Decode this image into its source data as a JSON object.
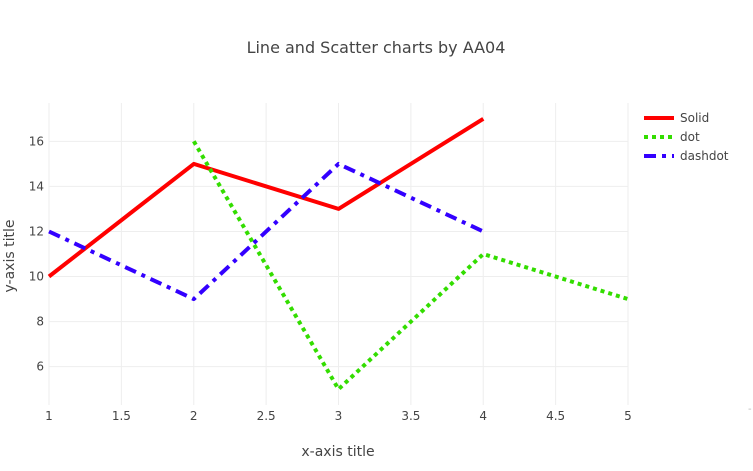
{
  "chart_data": {
    "type": "line",
    "title": "Line and Scatter charts by AA04",
    "xlabel": "x-axis title",
    "ylabel": "y-axis title",
    "xlim": [
      1,
      5
    ],
    "ylim": [
      4.3,
      17.7
    ],
    "xticks": [
      1,
      1.5,
      2,
      2.5,
      3,
      3.5,
      4,
      4.5,
      5
    ],
    "xtick_labels": [
      "1",
      "1.5",
      "2",
      "2.5",
      "3",
      "3.5",
      "4",
      "4.5",
      "5"
    ],
    "yticks": [
      6,
      8,
      10,
      12,
      14,
      16
    ],
    "ytick_labels": [
      "6",
      "8",
      "10",
      "12",
      "14",
      "16"
    ],
    "grid": true,
    "legend_position": "top-right",
    "series": [
      {
        "name": "Solid",
        "dash": "solid",
        "color": "#ff0000",
        "x": [
          1,
          2,
          3,
          4
        ],
        "y": [
          10,
          15,
          13,
          17
        ]
      },
      {
        "name": "dot",
        "dash": "dot",
        "color": "#33dd00",
        "x": [
          2,
          3,
          4,
          5
        ],
        "y": [
          16,
          5,
          11,
          9
        ]
      },
      {
        "name": "dashdot",
        "dash": "dashdot",
        "color": "#3300ff",
        "x": [
          1,
          2,
          3,
          4
        ],
        "y": [
          12,
          9,
          15,
          12
        ]
      }
    ]
  }
}
